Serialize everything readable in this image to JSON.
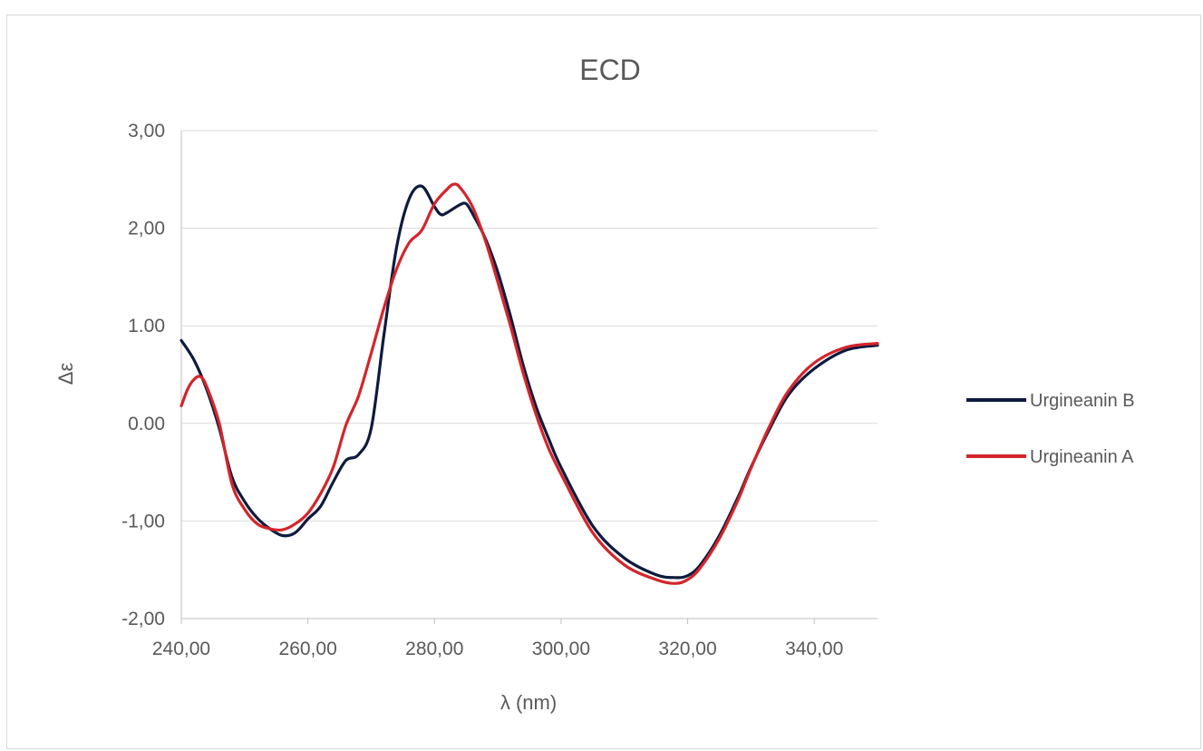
{
  "chart_data": {
    "type": "line",
    "title": "ECD",
    "xlabel": "λ (nm)",
    "ylabel": "Δε",
    "xlim": [
      240,
      350
    ],
    "ylim": [
      -2,
      3
    ],
    "x_ticks": [
      240,
      260,
      280,
      300,
      320,
      340
    ],
    "x_tick_labels": [
      "240,00",
      "260,00",
      "280,00",
      "300,00",
      "320,00",
      "340,00"
    ],
    "y_ticks": [
      3,
      2,
      1,
      0,
      -1,
      -2
    ],
    "y_tick_labels": [
      "3,00",
      "2,00",
      "1.00",
      "0.00",
      "-1,00",
      "-2,00"
    ],
    "grid": "horizontal",
    "legend_position": "right",
    "series": [
      {
        "name": "Urgineanin B",
        "color": "#0d1b3e",
        "points": [
          [
            240,
            0.85
          ],
          [
            242,
            0.65
          ],
          [
            244,
            0.35
          ],
          [
            246,
            -0.05
          ],
          [
            248,
            -0.55
          ],
          [
            250,
            -0.8
          ],
          [
            252,
            -0.97
          ],
          [
            254,
            -1.08
          ],
          [
            256,
            -1.15
          ],
          [
            258,
            -1.12
          ],
          [
            260,
            -0.98
          ],
          [
            262,
            -0.85
          ],
          [
            264,
            -0.6
          ],
          [
            266,
            -0.38
          ],
          [
            268,
            -0.32
          ],
          [
            270,
            -0.05
          ],
          [
            272,
            0.9
          ],
          [
            274,
            1.8
          ],
          [
            276,
            2.3
          ],
          [
            278,
            2.43
          ],
          [
            280,
            2.22
          ],
          [
            281,
            2.14
          ],
          [
            282,
            2.16
          ],
          [
            284,
            2.24
          ],
          [
            285,
            2.25
          ],
          [
            286,
            2.15
          ],
          [
            288,
            1.9
          ],
          [
            290,
            1.55
          ],
          [
            292,
            1.1
          ],
          [
            294,
            0.6
          ],
          [
            296,
            0.18
          ],
          [
            298,
            -0.15
          ],
          [
            300,
            -0.45
          ],
          [
            305,
            -1.05
          ],
          [
            310,
            -1.38
          ],
          [
            315,
            -1.55
          ],
          [
            318,
            -1.58
          ],
          [
            320,
            -1.56
          ],
          [
            322,
            -1.45
          ],
          [
            325,
            -1.15
          ],
          [
            328,
            -0.75
          ],
          [
            330,
            -0.45
          ],
          [
            333,
            -0.05
          ],
          [
            336,
            0.3
          ],
          [
            340,
            0.56
          ],
          [
            345,
            0.75
          ],
          [
            350,
            0.8
          ]
        ]
      },
      {
        "name": "Urgineanin A",
        "color": "#d4252b",
        "points": [
          [
            240,
            0.18
          ],
          [
            241,
            0.35
          ],
          [
            242,
            0.45
          ],
          [
            243,
            0.48
          ],
          [
            244,
            0.38
          ],
          [
            246,
            0.0
          ],
          [
            248,
            -0.62
          ],
          [
            250,
            -0.88
          ],
          [
            252,
            -1.03
          ],
          [
            254,
            -1.08
          ],
          [
            256,
            -1.09
          ],
          [
            258,
            -1.03
          ],
          [
            260,
            -0.92
          ],
          [
            262,
            -0.72
          ],
          [
            264,
            -0.45
          ],
          [
            266,
            -0.02
          ],
          [
            268,
            0.28
          ],
          [
            270,
            0.72
          ],
          [
            272,
            1.18
          ],
          [
            274,
            1.58
          ],
          [
            276,
            1.85
          ],
          [
            278,
            1.98
          ],
          [
            280,
            2.25
          ],
          [
            282,
            2.4
          ],
          [
            283,
            2.45
          ],
          [
            284,
            2.42
          ],
          [
            286,
            2.22
          ],
          [
            288,
            1.88
          ],
          [
            290,
            1.45
          ],
          [
            292,
            1.0
          ],
          [
            294,
            0.52
          ],
          [
            296,
            0.1
          ],
          [
            298,
            -0.25
          ],
          [
            300,
            -0.52
          ],
          [
            305,
            -1.12
          ],
          [
            310,
            -1.45
          ],
          [
            315,
            -1.6
          ],
          [
            318,
            -1.64
          ],
          [
            320,
            -1.6
          ],
          [
            322,
            -1.48
          ],
          [
            325,
            -1.18
          ],
          [
            328,
            -0.78
          ],
          [
            330,
            -0.46
          ],
          [
            333,
            -0.02
          ],
          [
            336,
            0.34
          ],
          [
            340,
            0.62
          ],
          [
            345,
            0.78
          ],
          [
            350,
            0.82
          ]
        ]
      }
    ]
  }
}
